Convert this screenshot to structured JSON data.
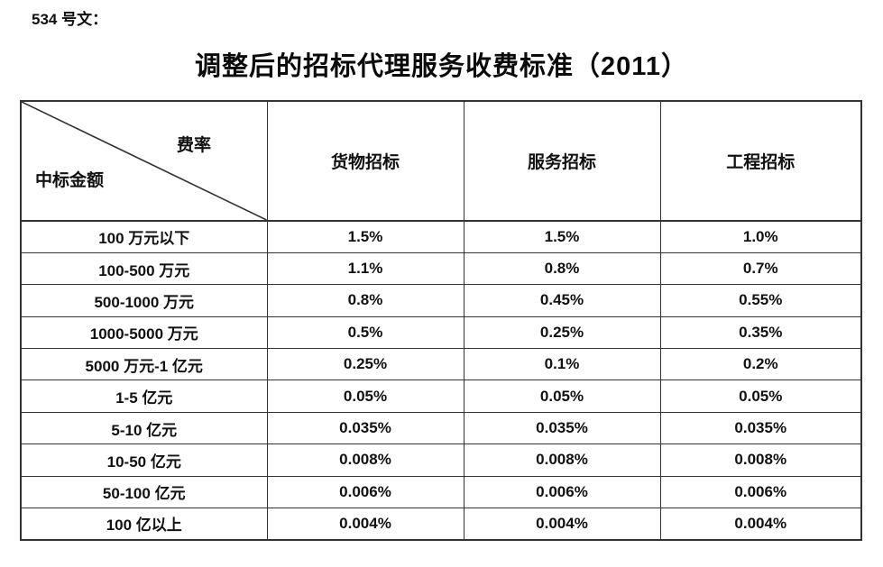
{
  "page": {
    "doc_label": "534 号文：",
    "title": "调整后的招标代理服务收费标准（2011）"
  },
  "table": {
    "corner": {
      "top_right": "费率",
      "bottom_left": "中标金额"
    },
    "columns": [
      "货物招标",
      "服务招标",
      "工程招标"
    ],
    "rows": [
      {
        "label": "100 万元以下",
        "values": [
          "1.5%",
          "1.5%",
          "1.0%"
        ]
      },
      {
        "label": "100-500 万元",
        "values": [
          "1.1%",
          "0.8%",
          "0.7%"
        ]
      },
      {
        "label": "500-1000 万元",
        "values": [
          "0.8%",
          "0.45%",
          "0.55%"
        ]
      },
      {
        "label": "1000-5000 万元",
        "values": [
          "0.5%",
          "0.25%",
          "0.35%"
        ]
      },
      {
        "label": "5000 万元-1 亿元",
        "values": [
          "0.25%",
          "0.1%",
          "0.2%"
        ]
      },
      {
        "label": "1-5 亿元",
        "values": [
          "0.05%",
          "0.05%",
          "0.05%"
        ]
      },
      {
        "label": "5-10 亿元",
        "values": [
          "0.035%",
          "0.035%",
          "0.035%"
        ]
      },
      {
        "label": "10-50 亿元",
        "values": [
          "0.008%",
          "0.008%",
          "0.008%"
        ]
      },
      {
        "label": "50-100 亿元",
        "values": [
          "0.006%",
          "0.006%",
          "0.006%"
        ]
      },
      {
        "label": "100 亿以上",
        "values": [
          "0.004%",
          "0.004%",
          "0.004%"
        ]
      }
    ],
    "colors": {
      "border": "#333333",
      "text": "#111111",
      "background": "#ffffff"
    }
  }
}
